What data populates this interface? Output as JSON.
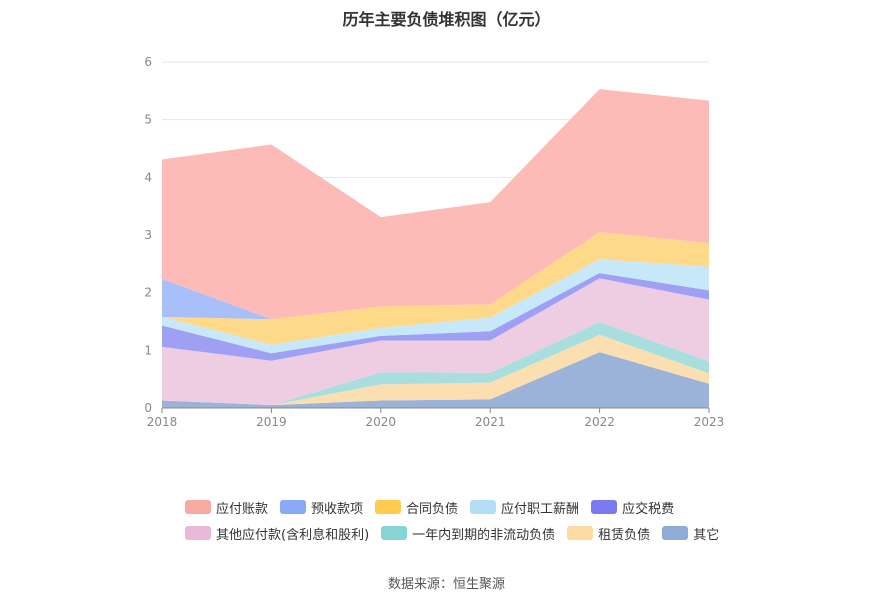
{
  "chart_data": {
    "type": "area",
    "stacked": true,
    "title": "历年主要负债堆积图（亿元）",
    "x": [
      "2018",
      "2019",
      "2020",
      "2021",
      "2022",
      "2023"
    ],
    "ylim": [
      0,
      6
    ],
    "yticks": [
      0,
      1,
      2,
      3,
      4,
      5,
      6
    ],
    "grid": true,
    "legend_position": "bottom",
    "series": [
      {
        "name": "其它",
        "color": "#9bb3d9",
        "values": [
          0.13,
          0.05,
          0.13,
          0.15,
          0.97,
          0.42
        ]
      },
      {
        "name": "租赁负债",
        "color": "#fbdfb0",
        "values": [
          0.0,
          0.0,
          0.28,
          0.29,
          0.3,
          0.18
        ]
      },
      {
        "name": "一年内到期的非流动负债",
        "color": "#a8dede",
        "values": [
          0.0,
          0.0,
          0.21,
          0.17,
          0.22,
          0.21
        ]
      },
      {
        "name": "其他应付款(含利息和股利)",
        "color": "#eecde3",
        "values": [
          0.93,
          0.77,
          0.55,
          0.56,
          0.76,
          1.07
        ]
      },
      {
        "name": "应交税费",
        "color": "#9f9ff3",
        "values": [
          0.37,
          0.13,
          0.08,
          0.16,
          0.09,
          0.16
        ]
      },
      {
        "name": "应付职工薪酬",
        "color": "#c7e8f8",
        "values": [
          0.15,
          0.15,
          0.14,
          0.24,
          0.24,
          0.41
        ]
      },
      {
        "name": "合同负债",
        "color": "#ffd98a",
        "values": [
          0.0,
          0.44,
          0.37,
          0.23,
          0.47,
          0.41
        ]
      },
      {
        "name": "预收款项",
        "color": "#a9bff9",
        "values": [
          0.66,
          0.0,
          0.0,
          0.0,
          0.0,
          0.0
        ]
      },
      {
        "name": "应付账款",
        "color": "#fcbbb6",
        "values": [
          2.07,
          3.03,
          1.55,
          1.77,
          2.48,
          2.47
        ]
      }
    ],
    "legend": [
      [
        {
          "name": "应付账款",
          "color": "#f8a9a2"
        },
        {
          "name": "预收款项",
          "color": "#8aa8f8"
        },
        {
          "name": "合同负债",
          "color": "#ffcb4f"
        },
        {
          "name": "应付职工薪酬",
          "color": "#b3def6"
        },
        {
          "name": "应交税费",
          "color": "#7b7bef"
        }
      ],
      [
        {
          "name": "其他应付款(含利息和股利)",
          "color": "#e8b9d8"
        },
        {
          "name": "一年内到期的非流动负债",
          "color": "#84d5d3"
        },
        {
          "name": "租赁负债",
          "color": "#fcdca2"
        },
        {
          "name": "其它",
          "color": "#8fabd6"
        }
      ]
    ],
    "source": "数据来源：恒生聚源"
  }
}
